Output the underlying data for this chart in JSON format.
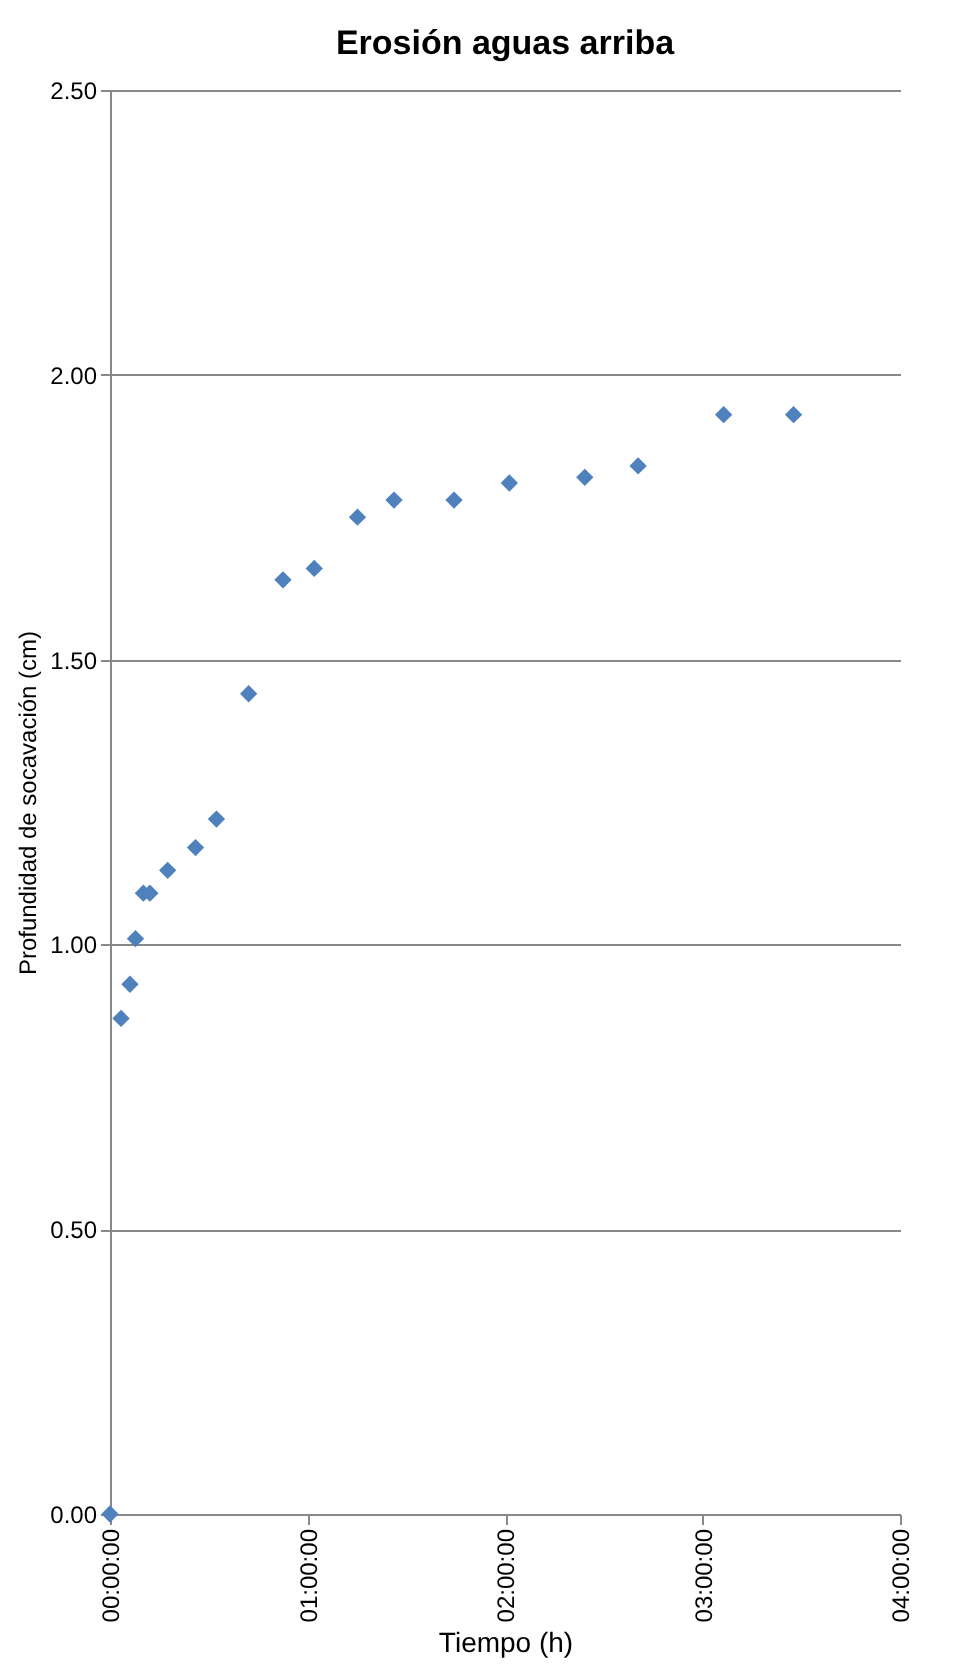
{
  "chart_data": {
    "type": "scatter",
    "title": "Erosión aguas arriba",
    "xlabel": "Tiempo (h)",
    "ylabel": "Profundidad de socavación (cm)",
    "x": [
      0,
      0.056,
      0.101,
      0.129,
      0.169,
      0.202,
      0.292,
      0.433,
      0.539,
      0.702,
      0.876,
      1.034,
      1.253,
      1.438,
      1.742,
      2.022,
      2.404,
      2.674,
      3.107,
      3.461
    ],
    "values": [
      0,
      0.87,
      0.93,
      1.01,
      1.09,
      1.09,
      1.13,
      1.17,
      1.22,
      1.44,
      1.64,
      1.66,
      1.75,
      1.78,
      1.78,
      1.81,
      1.82,
      1.84,
      1.93,
      1.93
    ],
    "color": "#4f81bd",
    "marker": "diamond",
    "xlim": [
      0,
      4
    ],
    "xticks": [
      {
        "value": 0,
        "label": "00:00:00"
      },
      {
        "value": 1,
        "label": "01:00:00"
      },
      {
        "value": 2,
        "label": "02:00:00"
      },
      {
        "value": 3,
        "label": "03:00:00"
      },
      {
        "value": 4,
        "label": "04:00:00"
      }
    ],
    "ylim": [
      0,
      2.5
    ],
    "yticks": [
      {
        "value": 0,
        "label": "0.00"
      },
      {
        "value": 0.5,
        "label": "0.50"
      },
      {
        "value": 1,
        "label": "1.00"
      },
      {
        "value": 1.5,
        "label": "1.50"
      },
      {
        "value": 2,
        "label": "2.00"
      },
      {
        "value": 2.5,
        "label": "2.50"
      }
    ],
    "grid": "y"
  }
}
